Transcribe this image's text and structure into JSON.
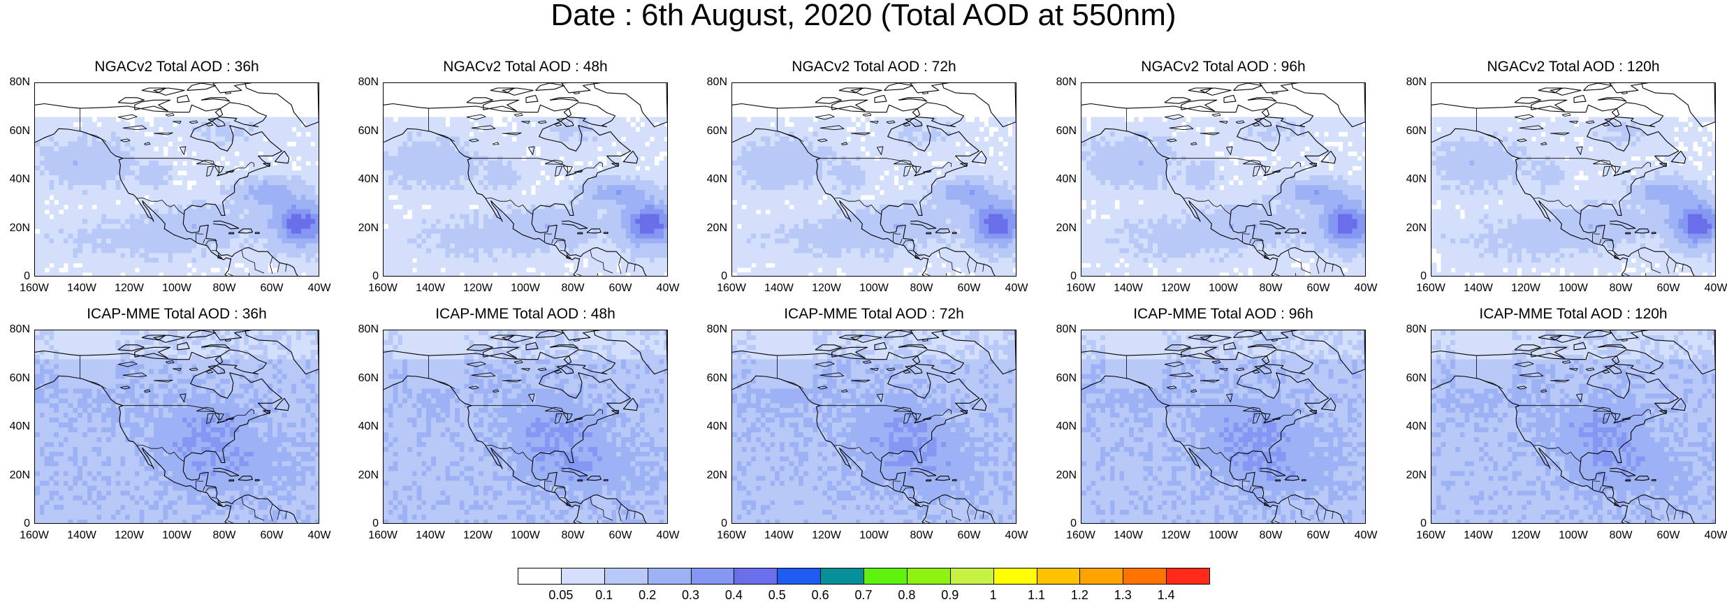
{
  "title": "Date : 6th August, 2020 (Total AOD at 550nm)",
  "panels": [
    {
      "title": "NGACv2 Total AOD : 36h",
      "model": "ngac",
      "seed": 11
    },
    {
      "title": "NGACv2 Total AOD : 48h",
      "model": "ngac",
      "seed": 23
    },
    {
      "title": "NGACv2 Total AOD : 72h",
      "model": "ngac",
      "seed": 37
    },
    {
      "title": "NGACv2 Total AOD : 96h",
      "model": "ngac",
      "seed": 41
    },
    {
      "title": "NGACv2 Total AOD : 120h",
      "model": "ngac",
      "seed": 53
    },
    {
      "title": "ICAP-MME Total AOD : 36h",
      "model": "icap",
      "seed": 61
    },
    {
      "title": "ICAP-MME Total AOD : 48h",
      "model": "icap",
      "seed": 73
    },
    {
      "title": "ICAP-MME Total AOD : 72h",
      "model": "icap",
      "seed": 87
    },
    {
      "title": "ICAP-MME Total AOD : 96h",
      "model": "icap",
      "seed": 97
    },
    {
      "title": "ICAP-MME Total AOD : 120h",
      "model": "icap",
      "seed": 101
    }
  ],
  "map": {
    "lat_ticks": [
      "80N",
      "60N",
      "40N",
      "20N",
      "0"
    ],
    "lon_ticks": [
      "160W",
      "140W",
      "120W",
      "100W",
      "80W",
      "60W",
      "40W"
    ],
    "lat_range": [
      0,
      80
    ],
    "lon_range": [
      -160,
      -40
    ]
  },
  "colorbar": {
    "labels": [
      "0.05",
      "0.1",
      "0.2",
      "0.3",
      "0.4",
      "0.5",
      "0.6",
      "0.7",
      "0.8",
      "0.9",
      "1",
      "1.1",
      "1.2",
      "1.3",
      "1.4"
    ],
    "colors": [
      "#ffffff",
      "#d4dffb",
      "#b9c9f7",
      "#9db2f5",
      "#8497f2",
      "#6a6ee9",
      "#1f5cf2",
      "#07909a",
      "#5ef20e",
      "#8cf20f",
      "#c5f243",
      "#ffff00",
      "#ffc200",
      "#ffa300",
      "#ff7300",
      "#ff2a1a"
    ]
  }
}
